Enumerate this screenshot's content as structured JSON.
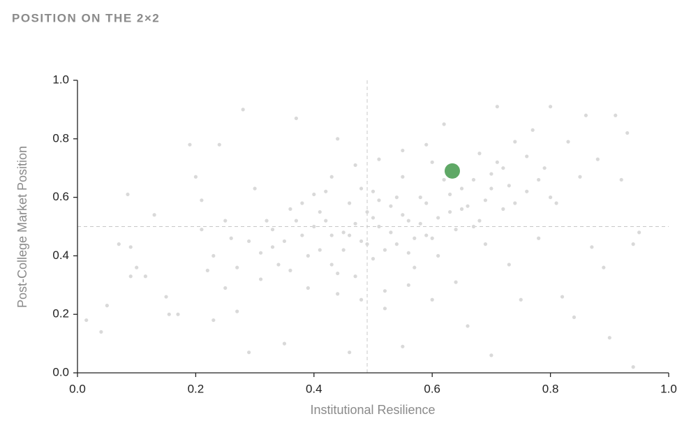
{
  "chart_data": {
    "type": "scatter",
    "title": "POSITION ON THE 2×2",
    "x_label": "Institutional Resilience",
    "y_label": "Post-College Market Position",
    "xlim": [
      0,
      1
    ],
    "ylim": [
      0,
      1
    ],
    "xticks": [
      {
        "value": 0,
        "label": "0.0"
      },
      0.2,
      0.4,
      0.6,
      0.8,
      {
        "value": 1,
        "label": "1.0"
      }
    ],
    "yticks": [
      {
        "value": 0,
        "label": "0.0"
      },
      0.2,
      0.4,
      0.6,
      0.8,
      {
        "value": 1,
        "label": "1.0"
      }
    ],
    "reference_x": 0.49,
    "reference_y": 0.5,
    "series": [
      {
        "color": "#d9d9d9",
        "x": [
          0.015,
          0.04,
          0.05,
          0.085,
          0.07,
          0.09,
          0.09,
          0.1,
          0.115,
          0.13,
          0.15,
          0.155,
          0.17,
          0.19,
          0.2,
          0.21,
          0.22,
          0.23,
          0.24,
          0.25,
          0.26,
          0.27,
          0.28,
          0.29,
          0.3,
          0.31,
          0.32,
          0.33,
          0.34,
          0.35,
          0.36,
          0.37,
          0.38,
          0.39,
          0.4,
          0.41,
          0.42,
          0.43,
          0.44,
          0.45,
          0.46,
          0.46,
          0.47,
          0.48,
          0.49,
          0.5,
          0.5,
          0.51,
          0.52,
          0.53,
          0.54,
          0.55,
          0.55,
          0.56,
          0.57,
          0.58,
          0.59,
          0.6,
          0.61,
          0.62,
          0.63,
          0.64,
          0.65,
          0.66,
          0.67,
          0.68,
          0.69,
          0.7,
          0.7,
          0.71,
          0.72,
          0.73,
          0.74,
          0.75,
          0.76,
          0.77,
          0.78,
          0.79,
          0.8,
          0.81,
          0.82,
          0.83,
          0.84,
          0.85,
          0.86,
          0.87,
          0.88,
          0.89,
          0.9,
          0.91,
          0.92,
          0.93,
          0.94,
          0.94,
          0.95,
          0.35,
          0.37,
          0.39,
          0.41,
          0.43,
          0.45,
          0.47,
          0.49,
          0.51,
          0.53,
          0.55,
          0.57,
          0.59,
          0.61,
          0.63,
          0.65,
          0.67,
          0.69,
          0.71,
          0.73,
          0.36,
          0.38,
          0.4,
          0.42,
          0.44,
          0.46,
          0.48,
          0.5,
          0.52,
          0.54,
          0.56,
          0.58,
          0.6,
          0.62,
          0.64,
          0.66,
          0.68,
          0.7,
          0.72,
          0.74,
          0.76,
          0.78,
          0.8,
          0.33,
          0.31,
          0.29,
          0.27,
          0.25,
          0.23,
          0.21,
          0.44,
          0.48,
          0.52,
          0.56,
          0.6,
          0.47,
          0.51,
          0.55,
          0.59,
          0.43
        ],
        "values": [
          0.18,
          0.14,
          0.23,
          0.61,
          0.44,
          0.43,
          0.33,
          0.36,
          0.33,
          0.54,
          0.26,
          0.2,
          0.2,
          0.78,
          0.67,
          0.59,
          0.35,
          0.18,
          0.78,
          0.29,
          0.46,
          0.21,
          0.9,
          0.07,
          0.63,
          0.32,
          0.52,
          0.43,
          0.37,
          0.1,
          0.56,
          0.87,
          0.47,
          0.29,
          0.61,
          0.42,
          0.52,
          0.37,
          0.8,
          0.48,
          0.07,
          0.58,
          0.33,
          0.45,
          0.55,
          0.39,
          0.62,
          0.5,
          0.28,
          0.57,
          0.44,
          0.67,
          0.09,
          0.52,
          0.36,
          0.6,
          0.47,
          0.72,
          0.4,
          0.85,
          0.55,
          0.31,
          0.63,
          0.16,
          0.5,
          0.75,
          0.44,
          0.06,
          0.68,
          0.91,
          0.56,
          0.37,
          0.79,
          0.25,
          0.62,
          0.83,
          0.46,
          0.7,
          0.91,
          0.58,
          0.26,
          0.79,
          0.19,
          0.67,
          0.88,
          0.43,
          0.73,
          0.36,
          0.12,
          0.88,
          0.66,
          0.82,
          0.44,
          0.02,
          0.48,
          0.45,
          0.52,
          0.4,
          0.55,
          0.47,
          0.42,
          0.51,
          0.44,
          0.59,
          0.48,
          0.54,
          0.46,
          0.58,
          0.53,
          0.61,
          0.56,
          0.66,
          0.59,
          0.72,
          0.64,
          0.35,
          0.58,
          0.5,
          0.62,
          0.34,
          0.47,
          0.63,
          0.53,
          0.42,
          0.6,
          0.41,
          0.51,
          0.46,
          0.66,
          0.49,
          0.57,
          0.52,
          0.63,
          0.7,
          0.58,
          0.74,
          0.66,
          0.6,
          0.49,
          0.41,
          0.45,
          0.36,
          0.52,
          0.4,
          0.49,
          0.27,
          0.25,
          0.22,
          0.3,
          0.25,
          0.71,
          0.73,
          0.76,
          0.78,
          0.67
        ]
      },
      {
        "color": "#5fa866",
        "x": [
          0.634
        ],
        "values": [
          0.69
        ]
      }
    ]
  }
}
